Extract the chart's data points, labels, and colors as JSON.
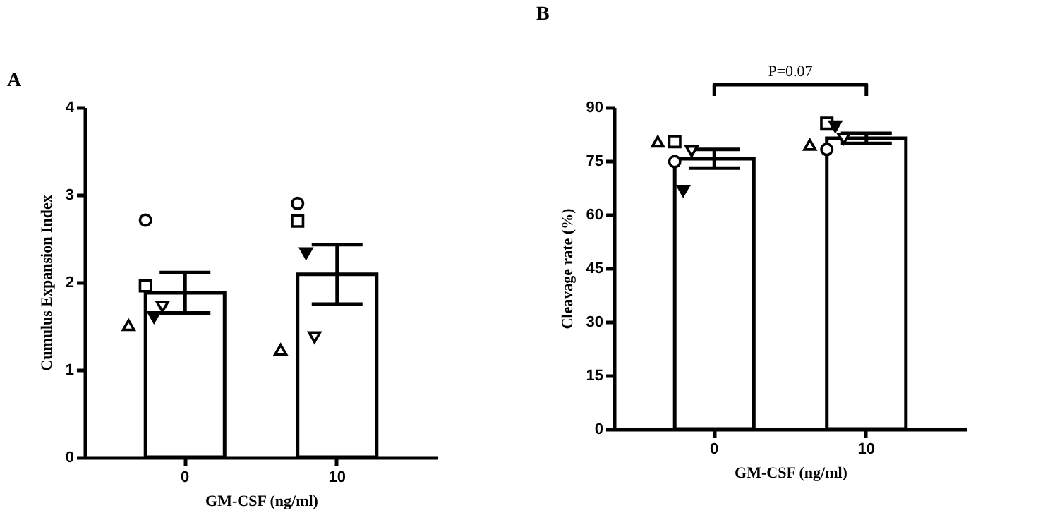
{
  "chart_data": [
    {
      "type": "bar",
      "title": "A",
      "xlabel": "GM-CSF (ng/ml)",
      "ylabel": "Cumulus Expansion Index",
      "categories": [
        "0",
        "10"
      ],
      "ylim": [
        0,
        4
      ],
      "yticks": [
        0,
        1,
        2,
        3,
        4
      ],
      "grid": false,
      "series": [
        {
          "color": "#ffffff",
          "values": [
            1.88,
            2.09
          ],
          "errors": [
            0.23,
            0.34
          ]
        },
        {
          "type": "scatter",
          "marker": "circle",
          "color": "#ffffff",
          "x": [
            "0",
            "10"
          ],
          "values": [
            2.71,
            2.9
          ]
        },
        {
          "type": "scatter",
          "marker": "square",
          "color": "#ffffff",
          "x": [
            "0",
            "10"
          ],
          "values": [
            1.96,
            2.7
          ]
        },
        {
          "type": "scatter",
          "marker": "triangle",
          "color": "#ffffff",
          "x": [
            "0",
            "10"
          ],
          "values": [
            1.51,
            1.23
          ]
        },
        {
          "type": "scatter",
          "marker": "triangle-down",
          "color": "#ffffff",
          "x": [
            "0",
            "10"
          ],
          "values": [
            1.72,
            1.37
          ]
        },
        {
          "type": "scatter",
          "marker": "triangle-down",
          "color": "#000000",
          "x": [
            "0",
            "10"
          ],
          "values": [
            1.6,
            2.33
          ]
        }
      ]
    },
    {
      "type": "bar",
      "title": "B",
      "xlabel": "GM-CSF (ng/ml)",
      "ylabel": "Cleavage rate (%)",
      "categories": [
        "0",
        "10"
      ],
      "ylim": [
        0,
        90
      ],
      "yticks": [
        0,
        15,
        30,
        45,
        60,
        75,
        90
      ],
      "grid": false,
      "annotations": [
        "P=0.07"
      ],
      "series": [
        {
          "color": "#ffffff",
          "values": [
            75.6,
            81.3
          ],
          "errors": [
            2.6,
            1.4
          ]
        },
        {
          "type": "scatter",
          "marker": "circle",
          "color": "#ffffff",
          "x": [
            "0",
            "10"
          ],
          "values": [
            74.8,
            78.2
          ]
        },
        {
          "type": "scatter",
          "marker": "square",
          "color": "#ffffff",
          "x": [
            "0",
            "10"
          ],
          "values": [
            80.4,
            85.5
          ]
        },
        {
          "type": "scatter",
          "marker": "triangle",
          "color": "#ffffff",
          "x": [
            "0",
            "10"
          ],
          "values": [
            80.4,
            79.5
          ]
        },
        {
          "type": "scatter",
          "marker": "triangle-down",
          "color": "#ffffff",
          "x": [
            "0",
            "10"
          ],
          "values": [
            77.7,
            81.2
          ]
        },
        {
          "type": "scatter",
          "marker": "triangle-down",
          "color": "#000000",
          "x": [
            "0",
            "10"
          ],
          "values": [
            66.6,
            84.6
          ]
        }
      ]
    }
  ]
}
